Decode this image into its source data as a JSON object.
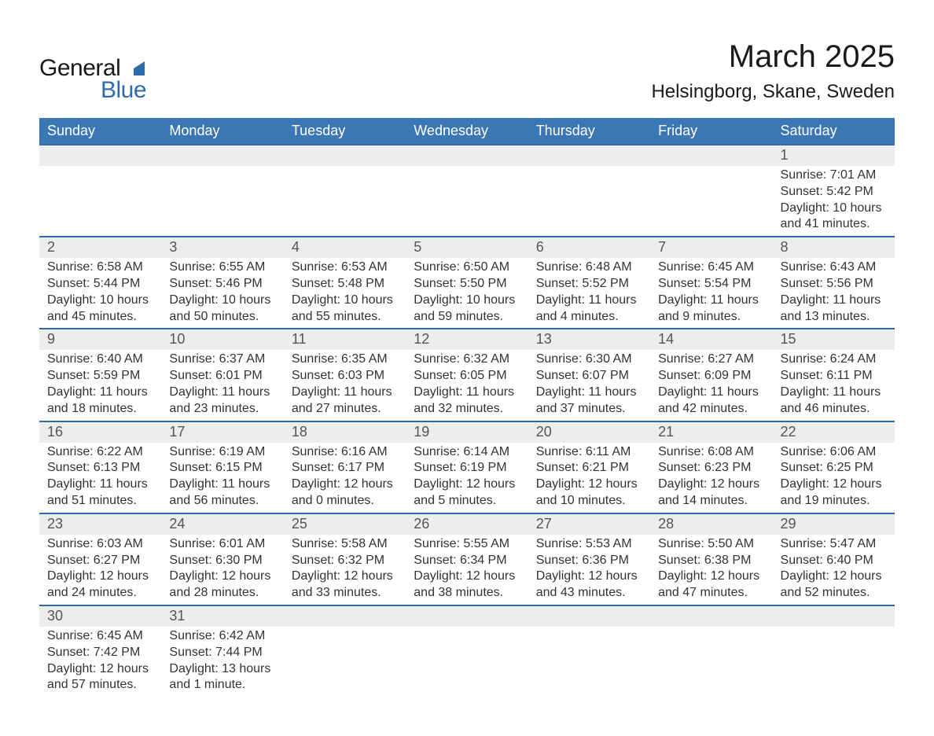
{
  "logo": {
    "word1": "General",
    "word2": "Blue",
    "accent_color": "#2f6bab"
  },
  "title": "March 2025",
  "location": "Helsingborg, Skane, Sweden",
  "colors": {
    "header_bg": "#3b77b5",
    "header_text": "#ffffff",
    "row_divider": "#2f6bab",
    "daynum_bg": "#ededed",
    "daynum_text": "#555555",
    "body_text": "#333333",
    "page_bg": "#ffffff"
  },
  "days_of_week": [
    "Sunday",
    "Monday",
    "Tuesday",
    "Wednesday",
    "Thursday",
    "Friday",
    "Saturday"
  ],
  "labels": {
    "sunrise": "Sunrise",
    "sunset": "Sunset",
    "daylight": "Daylight"
  },
  "weeks": [
    [
      null,
      null,
      null,
      null,
      null,
      null,
      {
        "n": "1",
        "sr": "7:01 AM",
        "ss": "5:42 PM",
        "dl": "10 hours and 41 minutes."
      }
    ],
    [
      {
        "n": "2",
        "sr": "6:58 AM",
        "ss": "5:44 PM",
        "dl": "10 hours and 45 minutes."
      },
      {
        "n": "3",
        "sr": "6:55 AM",
        "ss": "5:46 PM",
        "dl": "10 hours and 50 minutes."
      },
      {
        "n": "4",
        "sr": "6:53 AM",
        "ss": "5:48 PM",
        "dl": "10 hours and 55 minutes."
      },
      {
        "n": "5",
        "sr": "6:50 AM",
        "ss": "5:50 PM",
        "dl": "10 hours and 59 minutes."
      },
      {
        "n": "6",
        "sr": "6:48 AM",
        "ss": "5:52 PM",
        "dl": "11 hours and 4 minutes."
      },
      {
        "n": "7",
        "sr": "6:45 AM",
        "ss": "5:54 PM",
        "dl": "11 hours and 9 minutes."
      },
      {
        "n": "8",
        "sr": "6:43 AM",
        "ss": "5:56 PM",
        "dl": "11 hours and 13 minutes."
      }
    ],
    [
      {
        "n": "9",
        "sr": "6:40 AM",
        "ss": "5:59 PM",
        "dl": "11 hours and 18 minutes."
      },
      {
        "n": "10",
        "sr": "6:37 AM",
        "ss": "6:01 PM",
        "dl": "11 hours and 23 minutes."
      },
      {
        "n": "11",
        "sr": "6:35 AM",
        "ss": "6:03 PM",
        "dl": "11 hours and 27 minutes."
      },
      {
        "n": "12",
        "sr": "6:32 AM",
        "ss": "6:05 PM",
        "dl": "11 hours and 32 minutes."
      },
      {
        "n": "13",
        "sr": "6:30 AM",
        "ss": "6:07 PM",
        "dl": "11 hours and 37 minutes."
      },
      {
        "n": "14",
        "sr": "6:27 AM",
        "ss": "6:09 PM",
        "dl": "11 hours and 42 minutes."
      },
      {
        "n": "15",
        "sr": "6:24 AM",
        "ss": "6:11 PM",
        "dl": "11 hours and 46 minutes."
      }
    ],
    [
      {
        "n": "16",
        "sr": "6:22 AM",
        "ss": "6:13 PM",
        "dl": "11 hours and 51 minutes."
      },
      {
        "n": "17",
        "sr": "6:19 AM",
        "ss": "6:15 PM",
        "dl": "11 hours and 56 minutes."
      },
      {
        "n": "18",
        "sr": "6:16 AM",
        "ss": "6:17 PM",
        "dl": "12 hours and 0 minutes."
      },
      {
        "n": "19",
        "sr": "6:14 AM",
        "ss": "6:19 PM",
        "dl": "12 hours and 5 minutes."
      },
      {
        "n": "20",
        "sr": "6:11 AM",
        "ss": "6:21 PM",
        "dl": "12 hours and 10 minutes."
      },
      {
        "n": "21",
        "sr": "6:08 AM",
        "ss": "6:23 PM",
        "dl": "12 hours and 14 minutes."
      },
      {
        "n": "22",
        "sr": "6:06 AM",
        "ss": "6:25 PM",
        "dl": "12 hours and 19 minutes."
      }
    ],
    [
      {
        "n": "23",
        "sr": "6:03 AM",
        "ss": "6:27 PM",
        "dl": "12 hours and 24 minutes."
      },
      {
        "n": "24",
        "sr": "6:01 AM",
        "ss": "6:30 PM",
        "dl": "12 hours and 28 minutes."
      },
      {
        "n": "25",
        "sr": "5:58 AM",
        "ss": "6:32 PM",
        "dl": "12 hours and 33 minutes."
      },
      {
        "n": "26",
        "sr": "5:55 AM",
        "ss": "6:34 PM",
        "dl": "12 hours and 38 minutes."
      },
      {
        "n": "27",
        "sr": "5:53 AM",
        "ss": "6:36 PM",
        "dl": "12 hours and 43 minutes."
      },
      {
        "n": "28",
        "sr": "5:50 AM",
        "ss": "6:38 PM",
        "dl": "12 hours and 47 minutes."
      },
      {
        "n": "29",
        "sr": "5:47 AM",
        "ss": "6:40 PM",
        "dl": "12 hours and 52 minutes."
      }
    ],
    [
      {
        "n": "30",
        "sr": "6:45 AM",
        "ss": "7:42 PM",
        "dl": "12 hours and 57 minutes."
      },
      {
        "n": "31",
        "sr": "6:42 AM",
        "ss": "7:44 PM",
        "dl": "13 hours and 1 minute."
      },
      null,
      null,
      null,
      null,
      null
    ]
  ]
}
